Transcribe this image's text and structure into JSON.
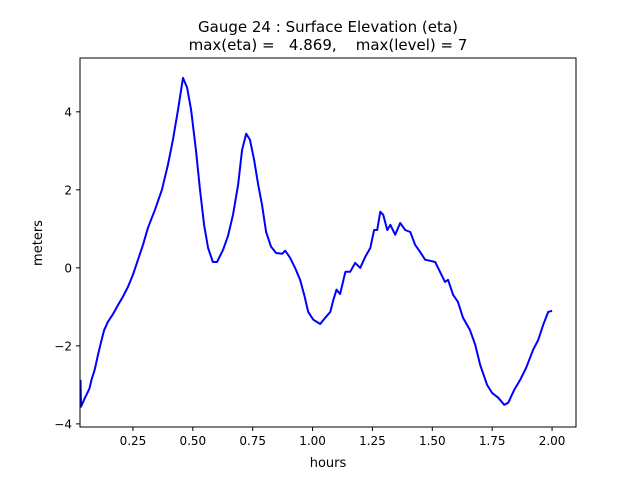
{
  "chart_data": {
    "type": "line",
    "title": "Gauge 24 : Surface Elevation (eta)",
    "subtitle": "max(eta) =   4.869,    max(level) = 7",
    "xlabel": "hours",
    "ylabel": "meters",
    "xlim": [
      0.029,
      2.1
    ],
    "ylim": [
      -4.08,
      5.38
    ],
    "xticks": [
      0.25,
      0.5,
      0.75,
      1.0,
      1.25,
      1.5,
      1.75,
      2.0
    ],
    "xtick_labels": [
      "0.25",
      "0.50",
      "0.75",
      "1.00",
      "1.25",
      "1.50",
      "1.75",
      "2.00"
    ],
    "yticks": [
      -4,
      -2,
      0,
      2,
      4
    ],
    "ytick_labels": [
      "−4",
      "−2",
      "0",
      "2",
      "4"
    ],
    "grid": false,
    "series": [
      {
        "name": "eta",
        "color": "#0000ff",
        "x": [
          0.031,
          0.033,
          0.05,
          0.062,
          0.069,
          0.077,
          0.09,
          0.104,
          0.117,
          0.13,
          0.146,
          0.167,
          0.188,
          0.208,
          0.229,
          0.25,
          0.271,
          0.292,
          0.313,
          0.342,
          0.371,
          0.396,
          0.417,
          0.438,
          0.459,
          0.476,
          0.493,
          0.513,
          0.53,
          0.547,
          0.564,
          0.584,
          0.601,
          0.626,
          0.647,
          0.668,
          0.689,
          0.706,
          0.723,
          0.739,
          0.756,
          0.773,
          0.789,
          0.806,
          0.827,
          0.848,
          0.873,
          0.886,
          0.906,
          0.927,
          0.948,
          0.965,
          0.982,
          1.003,
          1.032,
          1.053,
          1.074,
          1.087,
          1.1,
          1.115,
          1.137,
          1.157,
          1.178,
          1.199,
          1.22,
          1.241,
          1.257,
          1.27,
          1.283,
          1.295,
          1.312,
          1.325,
          1.345,
          1.366,
          1.387,
          1.408,
          1.428,
          1.449,
          1.47,
          1.512,
          1.532,
          1.553,
          1.566,
          1.587,
          1.607,
          1.628,
          1.657,
          1.679,
          1.7,
          1.729,
          1.75,
          1.775,
          1.8,
          1.817,
          1.842,
          1.867,
          1.892,
          1.921,
          1.942,
          1.963,
          1.984,
          2.0
        ],
        "y": [
          -2.87,
          -3.56,
          -3.33,
          -3.18,
          -3.08,
          -2.87,
          -2.62,
          -2.23,
          -1.9,
          -1.59,
          -1.38,
          -1.18,
          -0.95,
          -0.74,
          -0.49,
          -0.18,
          0.21,
          0.59,
          1.03,
          1.49,
          2.0,
          2.64,
          3.28,
          4.05,
          4.87,
          4.62,
          4.05,
          3.03,
          2.0,
          1.1,
          0.51,
          0.15,
          0.15,
          0.46,
          0.82,
          1.36,
          2.13,
          3.03,
          3.44,
          3.28,
          2.77,
          2.13,
          1.62,
          0.92,
          0.54,
          0.38,
          0.36,
          0.44,
          0.26,
          0.0,
          -0.31,
          -0.69,
          -1.13,
          -1.33,
          -1.44,
          -1.28,
          -1.13,
          -0.82,
          -0.56,
          -0.67,
          -0.1,
          -0.1,
          0.13,
          0.0,
          0.28,
          0.51,
          0.97,
          0.97,
          1.44,
          1.36,
          0.97,
          1.1,
          0.85,
          1.15,
          0.97,
          0.92,
          0.59,
          0.41,
          0.21,
          0.15,
          -0.1,
          -0.36,
          -0.31,
          -0.69,
          -0.87,
          -1.28,
          -1.59,
          -1.97,
          -2.49,
          -3.0,
          -3.21,
          -3.33,
          -3.51,
          -3.46,
          -3.13,
          -2.87,
          -2.56,
          -2.1,
          -1.85,
          -1.46,
          -1.13,
          -1.1
        ]
      }
    ]
  }
}
